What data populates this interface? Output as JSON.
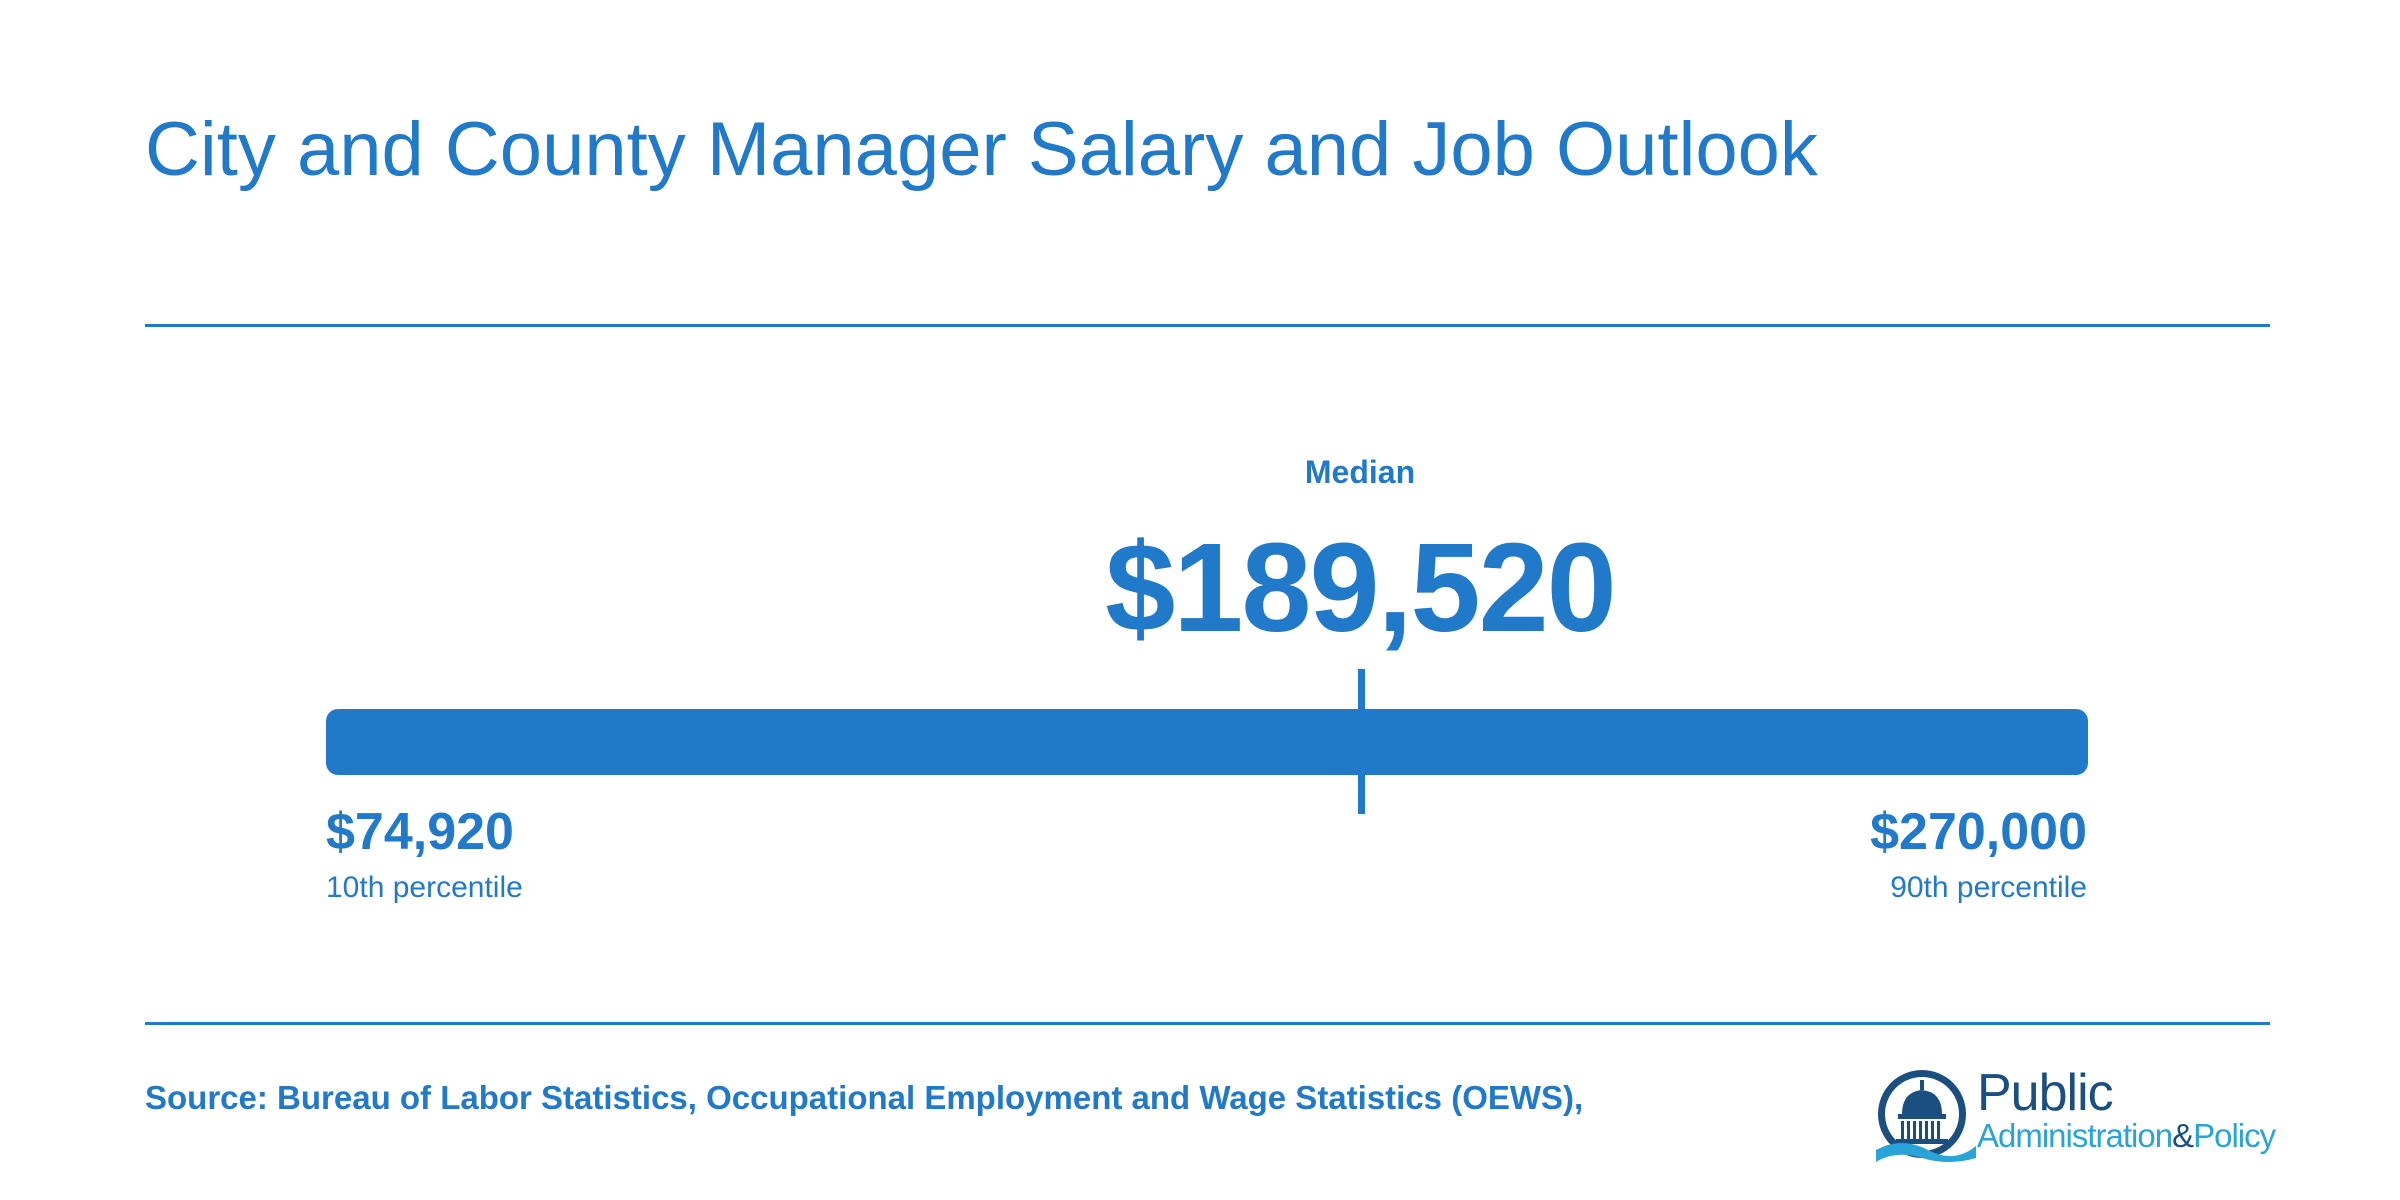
{
  "title": "City and County Manager Salary and Job Outlook",
  "chart_data": {
    "type": "range",
    "median_label": "Median",
    "median_value": 189520,
    "median_display": "$189,520",
    "low_value": 74920,
    "low_display": "$74,920",
    "low_label": "10th percentile",
    "high_value": 270000,
    "high_display": "$270,000",
    "high_label": "90th percentile"
  },
  "source": "Source: Bureau of Labor Statistics, Occupational Employment and Wage Statistics (OEWS),",
  "logo": {
    "word1": "Public",
    "word2a": "Administration",
    "word2b": "&",
    "word2c": "Policy"
  },
  "colors": {
    "accent": "#2179c9",
    "logo_dark": "#1b4f7f",
    "logo_light": "#2aa3d9"
  }
}
